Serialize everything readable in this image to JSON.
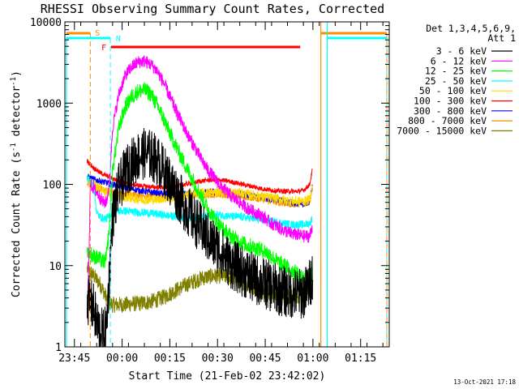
{
  "chart_data": {
    "type": "line",
    "title": "RHESSI Observing Summary Count Rates, Corrected",
    "xlabel": "Start Time (21-Feb-02 23:42:02)",
    "ylabel_main": "Corrected Count Rate (s",
    "ylabel_sup1": "-1",
    "ylabel_mid": " detector",
    "ylabel_sup2": "-1",
    "ylabel_end": ")",
    "x_unit": "minutes after 23:42:02",
    "xlim": [
      0,
      102
    ],
    "ylim": [
      1,
      10000
    ],
    "yscale": "log",
    "x_ticks": [
      {
        "label": "23:45",
        "x": 3
      },
      {
        "label": "00:00",
        "x": 18
      },
      {
        "label": "00:15",
        "x": 33
      },
      {
        "label": "00:30",
        "x": 48
      },
      {
        "label": "00:45",
        "x": 63
      },
      {
        "label": "01:00",
        "x": 78
      },
      {
        "label": "01:15",
        "x": 93
      }
    ],
    "y_ticks": [
      {
        "label": "1",
        "v": 1
      },
      {
        "label": "10",
        "v": 10
      },
      {
        "label": "100",
        "v": 100
      },
      {
        "label": "1000",
        "v": 1000
      },
      {
        "label": "10000",
        "v": 10000
      }
    ],
    "legend_header": [
      "Det 1,3,4,5,6,9,",
      "Att 1"
    ],
    "timestamp": "13-Oct-2021 17:18",
    "series": [
      {
        "name": "3 - 6 keV",
        "color": "#000000",
        "x": [
          7,
          9,
          10,
          11,
          12,
          13,
          14,
          15,
          17,
          19,
          21,
          23,
          25,
          27,
          29,
          31,
          33,
          35,
          37,
          39,
          41,
          43,
          45,
          47,
          49,
          51,
          53,
          55,
          57,
          59,
          61,
          63,
          65,
          67,
          69,
          71,
          73,
          75,
          76,
          77,
          78
        ],
        "y": [
          4,
          3,
          2,
          1.6,
          1.4,
          1.6,
          8,
          40,
          90,
          140,
          180,
          220,
          240,
          230,
          200,
          150,
          110,
          80,
          60,
          45,
          35,
          28,
          22,
          18,
          15,
          12,
          10,
          9,
          8,
          7,
          6.5,
          6,
          5.5,
          5,
          4.8,
          4.6,
          4.5,
          4.5,
          5,
          6,
          8
        ],
        "noise": 0.32
      },
      {
        "name": "6 - 12 keV",
        "color": "#ff00ff",
        "x": [
          7,
          7.5,
          8,
          9,
          10,
          11,
          12,
          13,
          14,
          15,
          17,
          19,
          21,
          23,
          25,
          27,
          29,
          31,
          33,
          35,
          37,
          39,
          41,
          43,
          45,
          47,
          49,
          51,
          53,
          55,
          57,
          59,
          61,
          63,
          65,
          67,
          69,
          71,
          73,
          75,
          77,
          77.8
        ],
        "y": [
          2,
          10,
          100,
          90,
          80,
          70,
          60,
          60,
          100,
          500,
          1300,
          2200,
          2800,
          3200,
          3300,
          3000,
          2500,
          1800,
          1200,
          800,
          550,
          380,
          280,
          200,
          150,
          120,
          95,
          80,
          68,
          60,
          52,
          47,
          43,
          38,
          33,
          30,
          27,
          25,
          24,
          23,
          23,
          30
        ],
        "noise": 0.08
      },
      {
        "name": "12 - 25 keV",
        "color": "#00ff00",
        "x": [
          7,
          9,
          11,
          12,
          13,
          14,
          15,
          17,
          19,
          21,
          23,
          25,
          27,
          29,
          31,
          33,
          35,
          37,
          39,
          41,
          43,
          45,
          47,
          49,
          51,
          53,
          55,
          57,
          59,
          61,
          63,
          65,
          67,
          69,
          71,
          73,
          75,
          77,
          77.8
        ],
        "y": [
          15,
          13,
          12,
          11,
          12,
          30,
          150,
          500,
          900,
          1200,
          1400,
          1450,
          1300,
          950,
          650,
          430,
          290,
          200,
          140,
          100,
          70,
          50,
          38,
          30,
          25,
          22,
          20,
          18,
          17,
          16,
          15,
          13,
          11,
          10,
          9,
          8,
          7,
          7,
          8
        ],
        "noise": 0.1
      },
      {
        "name": "25 - 50 keV",
        "color": "#00ffff",
        "x": [
          7,
          9,
          10,
          11,
          12,
          13,
          14,
          15,
          17,
          19,
          21,
          23,
          25,
          27,
          29,
          31,
          33,
          35,
          37,
          39,
          41,
          43,
          45,
          47,
          49,
          51,
          53,
          55,
          57,
          59,
          61,
          63,
          65,
          67,
          69,
          71,
          73,
          75,
          77,
          77.8
        ],
        "y": [
          120,
          100,
          45,
          40,
          38,
          38,
          40,
          45,
          47,
          47,
          46,
          45,
          45,
          44,
          43,
          42,
          41,
          40,
          40,
          39,
          39,
          40,
          41,
          42,
          42,
          41,
          40,
          40,
          39,
          38,
          37,
          36,
          35,
          34,
          33,
          32,
          32,
          32,
          33,
          38
        ],
        "noise": 0.05
      },
      {
        "name": "50 - 100 keV",
        "color": "#ffd700",
        "x": [
          7,
          9,
          11,
          13,
          15,
          17,
          19,
          21,
          23,
          25,
          27,
          29,
          31,
          33,
          35,
          37,
          39,
          41,
          43,
          45,
          47,
          49,
          51,
          53,
          55,
          57,
          59,
          61,
          63,
          65,
          67,
          69,
          71,
          73,
          75,
          77,
          77.8
        ],
        "y": [
          110,
          100,
          90,
          80,
          75,
          72,
          70,
          68,
          66,
          65,
          65,
          66,
          67,
          68,
          70,
          72,
          74,
          76,
          78,
          79,
          80,
          80,
          80,
          79,
          78,
          76,
          74,
          72,
          70,
          68,
          66,
          64,
          62,
          62,
          62,
          65,
          95
        ],
        "noise": 0.06
      },
      {
        "name": "100 - 300 keV",
        "color": "#ff0000",
        "x": [
          7,
          9,
          11,
          13,
          15,
          17,
          19,
          21,
          23,
          25,
          27,
          29,
          31,
          33,
          35,
          37,
          39,
          41,
          43,
          45,
          47,
          49,
          51,
          53,
          55,
          57,
          59,
          61,
          63,
          65,
          67,
          69,
          71,
          73,
          75,
          77,
          77.8
        ],
        "y": [
          195,
          160,
          140,
          128,
          118,
          110,
          104,
          100,
          97,
          95,
          93,
          92,
          92,
          93,
          95,
          98,
          102,
          106,
          110,
          113,
          114,
          113,
          110,
          106,
          102,
          98,
          94,
          90,
          87,
          85,
          83,
          82,
          82,
          82,
          84,
          100,
          150
        ],
        "noise": 0.03
      },
      {
        "name": "300 - 800 keV",
        "color": "#0000ff",
        "x": [
          7,
          9,
          11,
          13,
          15,
          17,
          19,
          21,
          23,
          25,
          27,
          29,
          31,
          33,
          35,
          37,
          39,
          41,
          43,
          45,
          47,
          49,
          51,
          53,
          55,
          57,
          59,
          61,
          63,
          65,
          67,
          69,
          71,
          73,
          75,
          77,
          77.8
        ],
        "y": [
          125,
          115,
          110,
          105,
          100,
          96,
          92,
          88,
          85,
          82,
          80,
          78,
          77,
          76,
          76,
          76,
          77,
          78,
          79,
          80,
          81,
          81,
          80,
          78,
          76,
          74,
          72,
          70,
          68,
          66,
          64,
          62,
          60,
          58,
          57,
          62,
          95
        ],
        "noise": 0.04
      },
      {
        "name": "800 - 7000 keV",
        "color": "#ff8c00",
        "x": [
          7,
          9,
          11,
          13,
          15,
          17,
          19,
          21,
          23,
          25,
          27,
          29,
          31,
          33,
          35,
          37,
          39,
          41,
          43,
          45,
          47,
          49,
          51,
          53,
          55,
          57,
          59,
          61,
          63,
          65,
          67,
          69,
          71,
          73,
          75,
          77,
          77.8
        ],
        "y": [
          105,
          95,
          88,
          84,
          80,
          78,
          76,
          75,
          74,
          73,
          72,
          72,
          72,
          72,
          72,
          73,
          73,
          74,
          74,
          74,
          74,
          74,
          73,
          72,
          71,
          70,
          68,
          66,
          64,
          62,
          60,
          58,
          57,
          57,
          57,
          60,
          90
        ],
        "noise": 0.04
      },
      {
        "name": "7000 - 15000 keV",
        "color": "#808000",
        "x": [
          7,
          9,
          11,
          12,
          13,
          14,
          15,
          17,
          19,
          21,
          23,
          25,
          27,
          29,
          31,
          33,
          35,
          37,
          39,
          41,
          43,
          45,
          47,
          49,
          51,
          53,
          55,
          57,
          59,
          61,
          63,
          65,
          67,
          69,
          71,
          73,
          75,
          77,
          77.8
        ],
        "y": [
          9,
          7.5,
          6,
          5,
          4,
          3.5,
          3.3,
          3.3,
          3.3,
          3.4,
          3.4,
          3.5,
          3.6,
          3.8,
          4.1,
          4.5,
          5,
          5.5,
          6,
          6.5,
          7,
          7.3,
          7.5,
          7.5,
          7.3,
          7,
          6.5,
          6,
          5.5,
          5,
          4.7,
          4.5,
          4.3,
          4.2,
          4.1,
          4.2,
          4.3,
          5,
          7
        ],
        "noise": 0.1
      }
    ],
    "annotations": [
      {
        "label": "S",
        "color": "#ff8c00"
      },
      {
        "label": "N",
        "color": "#00ffff"
      },
      {
        "label": "F",
        "color": "#ff0000"
      }
    ]
  }
}
